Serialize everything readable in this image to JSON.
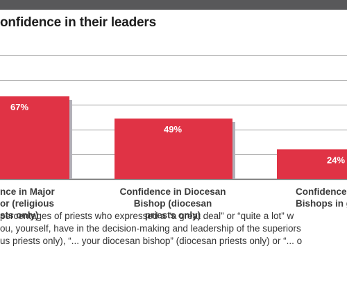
{
  "chart_data": {
    "type": "bar",
    "title": "onfidence in their leaders",
    "categories": [
      "nce in Major\nor (religious\nsts only)",
      "Confidence in Diocesan\nBishop (diocesan\npriests only)",
      "Confidence\nBishops in g"
    ],
    "values": [
      67,
      49,
      24
    ],
    "value_labels": [
      "67%",
      "49%",
      "24%"
    ],
    "ylim": [
      0,
      100
    ],
    "grid": true,
    "colors": {
      "bar": "#e03345",
      "bar_shadow": "#b2b0b8",
      "grid": "#9a9a9a",
      "axis": "#555555",
      "top_band": "#58585a"
    }
  },
  "footnote": "percentages of priests who expressed a “a great deal” or “quite a lot” w\nou, yourself, have in the decision-making and leadership of the superiors\nus priests only), “... your diocesan bishop” (diocesan priests only) or “... o"
}
